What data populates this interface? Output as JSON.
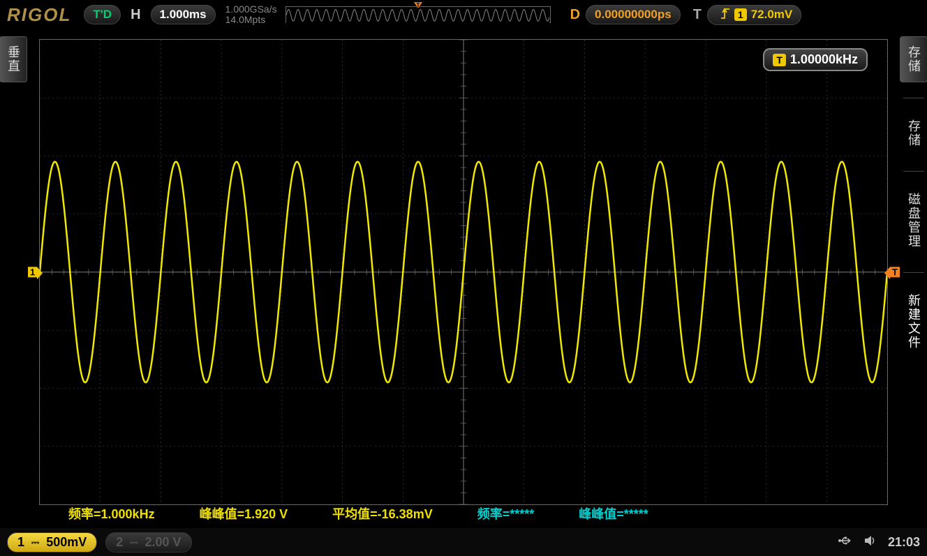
{
  "brand": "RIGOL",
  "topbar": {
    "mode": "T'D",
    "h_label": "H",
    "timebase": "1.000ms",
    "samplerate_line1": "1.000GSa/s",
    "samplerate_line2": "14.0Mpts",
    "d_label": "D",
    "delay": "0.00000000ps",
    "t_label": "T",
    "trigger_channel_badge": "1",
    "trigger_level": "72.0mV"
  },
  "freq_badge": {
    "ch": "T",
    "value": "1.00000kHz"
  },
  "leftbar": {
    "tab": "垂直"
  },
  "rightbar": {
    "tab1": "存储",
    "tab2": "存储",
    "tab3": "磁盘管理",
    "tab4": "新建文件"
  },
  "ch_marker": "1",
  "trig_marker": "T",
  "measurements": {
    "m1": "频率=1.000kHz",
    "m2": "峰峰值=1.920 V",
    "m3": "平均值=-16.38mV",
    "m4": "频率=*****",
    "m5": "峰峰值=*****"
  },
  "channels": {
    "ch1": {
      "num": "1",
      "coupling": "⎓",
      "scale": "500mV"
    },
    "ch2": {
      "num": "2",
      "coupling": "⎓",
      "scale": "2.00 V"
    }
  },
  "clock": "21:03",
  "waveform": {
    "color": "#f0e800",
    "grid_color": "#444444",
    "grid_color_center": "#666666",
    "background": "#000000",
    "h_divs": 14,
    "v_divs": 8,
    "frequency_hz": 1000,
    "timebase_s_per_div": 0.001,
    "amplitude_divs": 1.9,
    "offset_divs": 0,
    "line_width": 2.5,
    "preview_cycles": 28
  },
  "colors": {
    "accent_yellow": "#f0c800",
    "accent_orange": "#f08020",
    "td_green": "#00d070",
    "cyan": "#00d0d0",
    "d_orange": "#f0a020"
  }
}
